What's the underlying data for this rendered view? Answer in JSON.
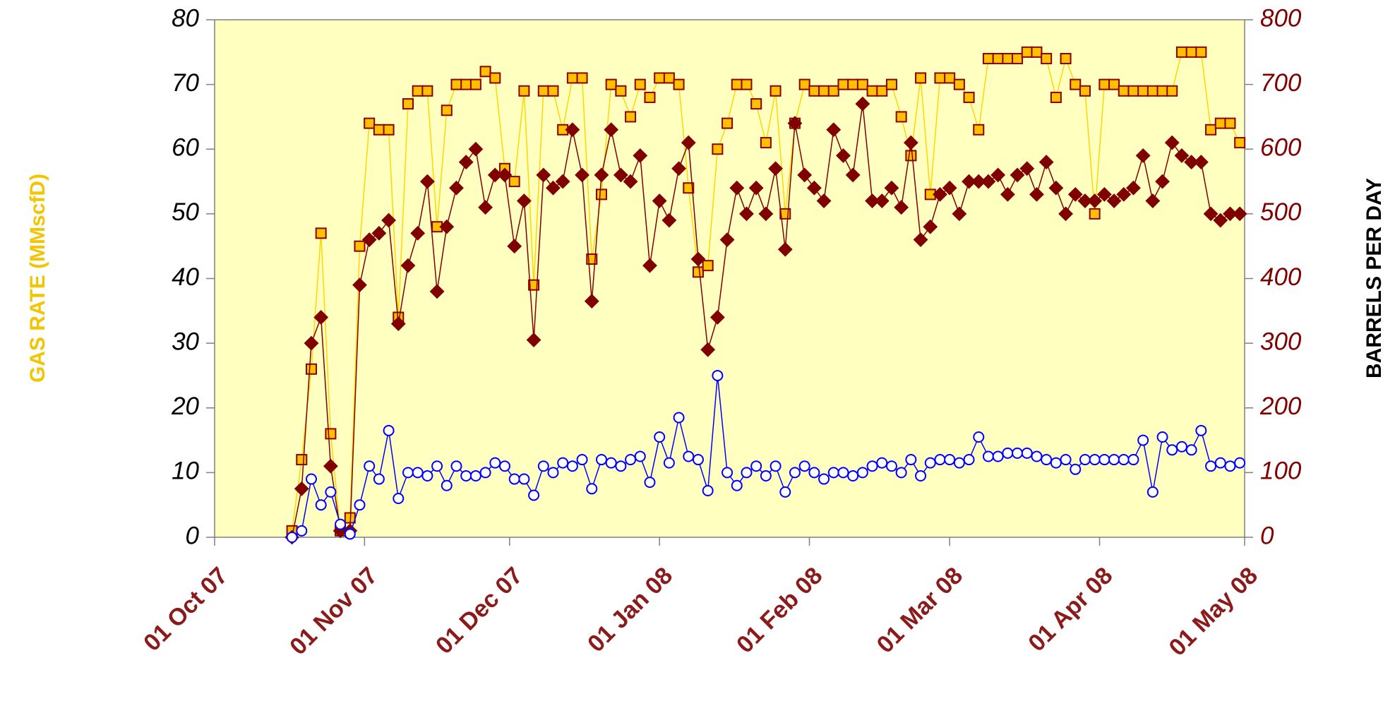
{
  "chart_data": {
    "type": "line",
    "ylabel": "GAS RATE (MMscfD)",
    "y2label": "BARRELS PER DAY",
    "xlim": [
      "2007-10-01",
      "2008-05-01"
    ],
    "xticks": [
      {
        "value": "2007-10-01",
        "label": "01 Oct 07"
      },
      {
        "value": "2007-11-01",
        "label": "01 Nov 07"
      },
      {
        "value": "2007-12-01",
        "label": "01 Dec 07"
      },
      {
        "value": "2008-01-01",
        "label": "01 Jan 08"
      },
      {
        "value": "2008-02-01",
        "label": "01 Feb 08"
      },
      {
        "value": "2008-03-01",
        "label": "01 Mar 08"
      },
      {
        "value": "2008-04-01",
        "label": "01 Apr 08"
      },
      {
        "value": "2008-05-01",
        "label": "01 May 08"
      }
    ],
    "ylim": [
      0,
      80
    ],
    "yticks": [
      0,
      10,
      20,
      30,
      40,
      50,
      60,
      70,
      80
    ],
    "y2lim": [
      0,
      800
    ],
    "y2ticks": [
      0,
      100,
      200,
      300,
      400,
      500,
      600,
      700,
      800
    ],
    "background": "#ffffc0",
    "x": [
      "2007-10-17",
      "2007-10-19",
      "2007-10-21",
      "2007-10-23",
      "2007-10-25",
      "2007-10-27",
      "2007-10-29",
      "2007-10-31",
      "2007-11-02",
      "2007-11-04",
      "2007-11-06",
      "2007-11-08",
      "2007-11-10",
      "2007-11-12",
      "2007-11-14",
      "2007-11-16",
      "2007-11-18",
      "2007-11-20",
      "2007-11-22",
      "2007-11-24",
      "2007-11-26",
      "2007-11-28",
      "2007-11-30",
      "2007-12-02",
      "2007-12-04",
      "2007-12-06",
      "2007-12-08",
      "2007-12-10",
      "2007-12-12",
      "2007-12-14",
      "2007-12-16",
      "2007-12-18",
      "2007-12-20",
      "2007-12-22",
      "2007-12-24",
      "2007-12-26",
      "2007-12-28",
      "2007-12-30",
      "2008-01-01",
      "2008-01-03",
      "2008-01-05",
      "2008-01-07",
      "2008-01-09",
      "2008-01-11",
      "2008-01-13",
      "2008-01-15",
      "2008-01-17",
      "2008-01-19",
      "2008-01-21",
      "2008-01-23",
      "2008-01-25",
      "2008-01-27",
      "2008-01-29",
      "2008-01-31",
      "2008-02-02",
      "2008-02-04",
      "2008-02-06",
      "2008-02-08",
      "2008-02-10",
      "2008-02-12",
      "2008-02-14",
      "2008-02-16",
      "2008-02-18",
      "2008-02-20",
      "2008-02-22",
      "2008-02-24",
      "2008-02-26",
      "2008-02-28",
      "2008-03-01",
      "2008-03-03",
      "2008-03-05",
      "2008-03-07",
      "2008-03-09",
      "2008-03-11",
      "2008-03-13",
      "2008-03-15",
      "2008-03-17",
      "2008-03-19",
      "2008-03-21",
      "2008-03-23",
      "2008-03-25",
      "2008-03-27",
      "2008-03-29",
      "2008-03-31",
      "2008-04-02",
      "2008-04-04",
      "2008-04-06",
      "2008-04-08",
      "2008-04-10",
      "2008-04-12",
      "2008-04-14",
      "2008-04-16",
      "2008-04-18",
      "2008-04-20",
      "2008-04-22",
      "2008-04-24",
      "2008-04-26",
      "2008-04-28",
      "2008-04-30"
    ],
    "series": [
      {
        "marker": "square",
        "color": "#ffd700",
        "marker_fill": "#ffc000",
        "marker_stroke": "#8b0000",
        "values": [
          1,
          12,
          26,
          47,
          16,
          1,
          3,
          45,
          64,
          63,
          63,
          34,
          67,
          69,
          69,
          48,
          66,
          70,
          70,
          70,
          72,
          71,
          57,
          55,
          69,
          39,
          69,
          69,
          63,
          71,
          71,
          43,
          53,
          70,
          69,
          65,
          70,
          68,
          71,
          71,
          70,
          54,
          41,
          42,
          60,
          64,
          70,
          70,
          67,
          61,
          69,
          50,
          64,
          70,
          69,
          69,
          69,
          70,
          70,
          70,
          69,
          69,
          70,
          65,
          59,
          71,
          53,
          71,
          71,
          70,
          68,
          63,
          74,
          74,
          74,
          74,
          75,
          75,
          74,
          68,
          74,
          70,
          69,
          50,
          70,
          70,
          69,
          69,
          69,
          69,
          69,
          69,
          75,
          75,
          75,
          63,
          64,
          64,
          61
        ]
      },
      {
        "marker": "diamond",
        "axis": "y2",
        "color": "#800000",
        "marker_fill": "#800000",
        "marker_stroke": "#800000",
        "values": [
          0,
          75,
          300,
          340,
          110,
          10,
          10,
          390,
          460,
          470,
          490,
          330,
          420,
          470,
          550,
          380,
          480,
          540,
          580,
          600,
          510,
          560,
          560,
          450,
          520,
          305,
          560,
          540,
          550,
          630,
          560,
          365,
          560,
          630,
          560,
          550,
          590,
          420,
          520,
          490,
          570,
          610,
          430,
          290,
          340,
          460,
          540,
          500,
          540,
          500,
          570,
          445,
          640,
          560,
          540,
          520,
          630,
          590,
          560,
          670,
          520,
          520,
          540,
          510,
          610,
          460,
          480,
          530,
          540,
          500,
          550,
          550,
          550,
          560,
          530,
          560,
          570,
          530,
          580,
          540,
          500,
          530,
          520,
          520,
          530,
          520,
          530,
          540,
          590,
          520,
          550,
          610,
          590,
          580,
          580,
          500,
          490,
          500,
          500
        ]
      },
      {
        "marker": "circle",
        "axis": "y2",
        "color": "#0000ff",
        "marker_fill": "#ffffff",
        "marker_stroke": "#0000ff",
        "values": [
          0,
          10,
          90,
          50,
          70,
          20,
          5,
          50,
          110,
          90,
          165,
          60,
          100,
          100,
          95,
          110,
          80,
          110,
          95,
          95,
          100,
          115,
          110,
          90,
          90,
          65,
          110,
          100,
          115,
          110,
          120,
          75,
          120,
          115,
          110,
          120,
          125,
          85,
          155,
          115,
          185,
          125,
          120,
          72,
          250,
          100,
          80,
          100,
          110,
          95,
          110,
          70,
          100,
          110,
          100,
          90,
          100,
          100,
          95,
          100,
          110,
          115,
          110,
          100,
          120,
          95,
          115,
          120,
          120,
          115,
          120,
          155,
          125,
          125,
          130,
          130,
          130,
          125,
          120,
          115,
          120,
          105,
          120,
          120,
          120,
          120,
          120,
          120,
          150,
          70,
          155,
          135,
          140,
          135,
          165,
          110,
          115,
          110,
          115
        ]
      }
    ]
  }
}
